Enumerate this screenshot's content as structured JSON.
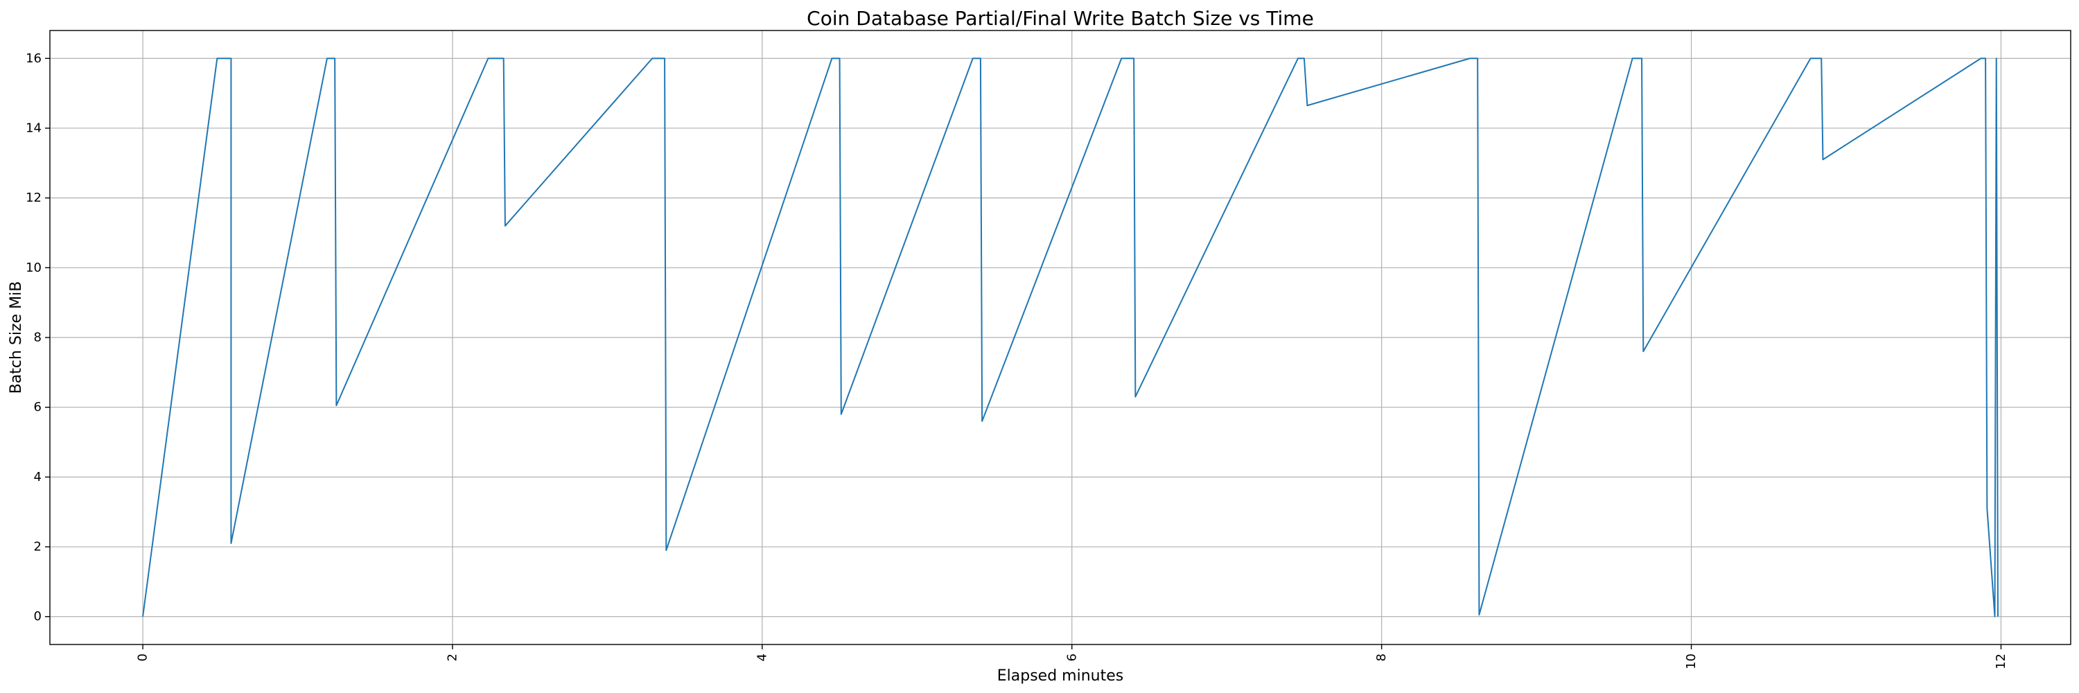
{
  "chart_data": {
    "type": "line",
    "title": "Coin Database Partial/Final Write Batch Size vs Time",
    "xlabel": "Elapsed minutes",
    "ylabel": "Batch Size MiB",
    "xlim": [
      -0.6,
      12.45
    ],
    "ylim": [
      -0.8,
      16.8
    ],
    "x_ticks": [
      0,
      2,
      4,
      6,
      8,
      10,
      12
    ],
    "x_tick_labels": [
      "0",
      "2",
      "4",
      "6",
      "8",
      "10",
      "12"
    ],
    "x_tick_label_rotation": "vertical",
    "y_ticks": [
      0,
      2,
      4,
      6,
      8,
      10,
      12,
      14,
      16
    ],
    "y_tick_labels": [
      "0",
      "2",
      "4",
      "6",
      "8",
      "10",
      "12",
      "14",
      "16"
    ],
    "grid": true,
    "legend": "none",
    "series": [
      {
        "color": "#1f77b4",
        "x": [
          0.0,
          0.48,
          0.57,
          0.57,
          1.19,
          1.24,
          1.25,
          2.23,
          2.33,
          2.34,
          3.29,
          3.37,
          3.38,
          4.45,
          4.5,
          4.51,
          5.36,
          5.41,
          5.42,
          6.32,
          6.4,
          6.41,
          7.46,
          7.5,
          7.52,
          8.57,
          8.62,
          8.63,
          9.62,
          9.68,
          9.69,
          10.77,
          10.84,
          10.85,
          11.87,
          11.9,
          11.91,
          11.96,
          11.97,
          11.98
        ],
        "y": [
          0.0,
          16.0,
          16.0,
          2.1,
          16.0,
          16.0,
          6.05,
          16.0,
          16.0,
          11.2,
          16.0,
          16.0,
          1.9,
          16.0,
          16.0,
          5.8,
          16.0,
          16.0,
          5.6,
          16.0,
          16.0,
          6.3,
          16.0,
          16.0,
          14.65,
          16.0,
          16.0,
          0.05,
          16.0,
          16.0,
          7.6,
          16.0,
          16.0,
          13.1,
          16.0,
          16.0,
          3.1,
          0.0,
          16.0,
          0.0
        ]
      }
    ]
  }
}
